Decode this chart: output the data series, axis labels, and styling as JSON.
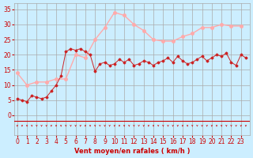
{
  "bg_color": "#cceeff",
  "grid_color": "#aaaaaa",
  "xlabel": "Vent moyen/en rafales ( km/h )",
  "tick_color": "#cc0000",
  "yticks": [
    0,
    5,
    10,
    15,
    20,
    25,
    30,
    35
  ],
  "xticks": [
    0,
    1,
    2,
    3,
    4,
    5,
    6,
    7,
    8,
    9,
    10,
    11,
    12,
    13,
    14,
    15,
    16,
    17,
    18,
    19,
    20,
    21,
    22,
    23
  ],
  "wind_avg_y": [
    5.5,
    5.0,
    4.5,
    6.5,
    6.0,
    5.5,
    6.0,
    8.0,
    10.0,
    13.0,
    21.0,
    22.0,
    21.5,
    22.0,
    21.0,
    20.0,
    14.5,
    17.0,
    17.5,
    16.5,
    17.0,
    18.5,
    17.5,
    18.5,
    16.5,
    17.0,
    18.0,
    17.5,
    16.5,
    17.5,
    18.0,
    19.0,
    17.5,
    19.5,
    18.0,
    17.0,
    17.5,
    18.5,
    19.5,
    18.0,
    19.0,
    20.0,
    19.5,
    20.5,
    17.5,
    16.5,
    20.0,
    19.0
  ],
  "wind_avg_x": [
    0.0,
    0.5,
    1.0,
    1.5,
    2.0,
    2.5,
    3.0,
    3.5,
    4.0,
    4.5,
    5.0,
    5.5,
    6.0,
    6.5,
    7.0,
    7.5,
    8.0,
    8.5,
    9.0,
    9.5,
    10.0,
    10.5,
    11.0,
    11.5,
    12.0,
    12.5,
    13.0,
    13.5,
    14.0,
    14.5,
    15.0,
    15.5,
    16.0,
    16.5,
    17.0,
    17.5,
    18.0,
    18.5,
    19.0,
    19.5,
    20.0,
    20.5,
    21.0,
    21.5,
    22.0,
    22.5,
    23.0,
    23.5
  ],
  "gust_y": [
    14.0,
    10.0,
    11.0,
    11.0,
    12.0,
    12.0,
    20.0,
    19.0,
    25.0,
    29.0,
    34.0,
    33.0,
    30.0,
    28.0,
    25.0,
    24.5,
    24.5,
    26.0,
    27.0,
    29.0,
    29.0,
    30.0,
    29.5,
    29.5
  ],
  "gust_x": [
    0,
    1,
    2,
    3,
    4,
    5,
    6,
    7,
    8,
    9,
    10,
    11,
    12,
    13,
    14,
    15,
    16,
    17,
    18,
    19,
    20,
    21,
    22,
    23
  ],
  "wind_avg_color": "#cc2222",
  "gust_color": "#ffaaaa",
  "arrow_color": "#cc0000",
  "xlim": [
    -0.3,
    23.9
  ],
  "ylim": [
    -6.5,
    37
  ]
}
